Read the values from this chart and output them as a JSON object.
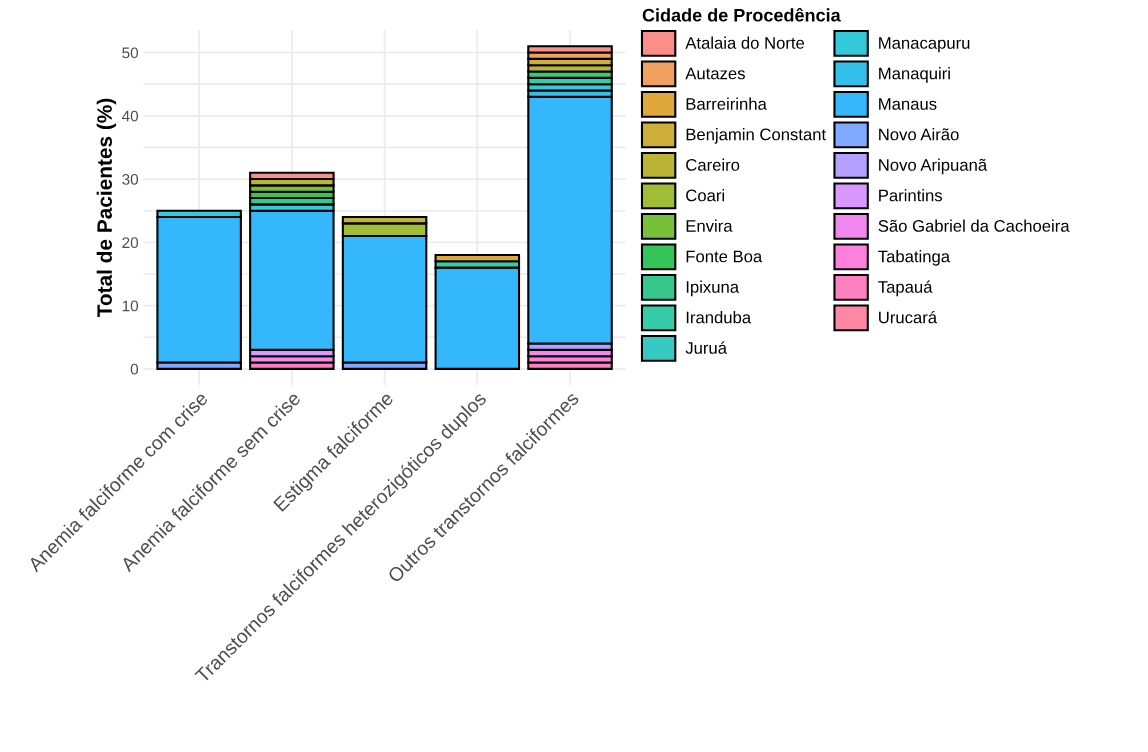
{
  "chart_data": {
    "type": "bar",
    "stacked": true,
    "ylabel": "Total de Pacientes (%)",
    "legend_title": "Cidade de Procedência",
    "legend": "right",
    "grid": true,
    "categories": [
      "Anemia falciforme com crise",
      "Anemia falciforme sem crise",
      "Estigma falciforme",
      "Transtornos falciformes heterozigóticos duplos",
      "Outros transtornos falciformes"
    ],
    "ylim": [
      -2.55,
      53.55
    ],
    "yticks": [
      0,
      {
        "value": 5,
        "label": null
      },
      10,
      {
        "value": 15,
        "label": null
      },
      20,
      {
        "value": 25,
        "label": null
      },
      30,
      {
        "value": 35,
        "label": null
      },
      40,
      {
        "value": 45,
        "label": null
      },
      50
    ],
    "series": [
      {
        "name": "Urucará",
        "color": "#fc88a4",
        "values": [
          0,
          0,
          0,
          0,
          0
        ]
      },
      {
        "name": "Tapauá",
        "color": "#fd80c0",
        "values": [
          0,
          1,
          0,
          0,
          1
        ]
      },
      {
        "name": "Tabatinga",
        "color": "#fc80dc",
        "values": [
          0,
          0,
          0,
          0,
          1
        ]
      },
      {
        "name": "São Gabriel da Cachoeira",
        "color": "#f088ee",
        "values": [
          0,
          1,
          0,
          0,
          1
        ]
      },
      {
        "name": "Parintins",
        "color": "#d898ff",
        "values": [
          0,
          1,
          0,
          0,
          0
        ]
      },
      {
        "name": "Novo Aripuanã",
        "color": "#b4a0ff",
        "values": [
          0,
          0,
          0,
          0,
          1
        ]
      },
      {
        "name": "Novo Airão",
        "color": "#80aaff",
        "values": [
          1,
          0,
          1,
          0,
          0
        ]
      },
      {
        "name": "Manaus",
        "color": "#35b8fb",
        "values": [
          23,
          22,
          20,
          16,
          39
        ]
      },
      {
        "name": "Manaquiri",
        "color": "#35c0ec",
        "values": [
          0,
          0,
          0,
          0,
          1
        ]
      },
      {
        "name": "Manacapuru",
        "color": "#35c8d8",
        "values": [
          1,
          1,
          0,
          0,
          1
        ]
      },
      {
        "name": "Juruá",
        "color": "#35cbc4",
        "values": [
          0,
          0,
          0,
          0,
          0
        ]
      },
      {
        "name": "Iranduba",
        "color": "#35cca8",
        "values": [
          0,
          0,
          0,
          1,
          1
        ]
      },
      {
        "name": "Ipixuna",
        "color": "#35c88a",
        "values": [
          0,
          1,
          0,
          0,
          1
        ]
      },
      {
        "name": "Fonte Boa",
        "color": "#35c45a",
        "values": [
          0,
          1,
          0,
          0,
          0
        ]
      },
      {
        "name": "Envira",
        "color": "#78c03a",
        "values": [
          0,
          1,
          0,
          0,
          0
        ]
      },
      {
        "name": "Coari",
        "color": "#a0bd35",
        "values": [
          0,
          0,
          2,
          0,
          0
        ]
      },
      {
        "name": "Careiro",
        "color": "#bbb435",
        "values": [
          0,
          1,
          1,
          0,
          1
        ]
      },
      {
        "name": "Benjamin Constant",
        "color": "#d0ae3a",
        "values": [
          0,
          0,
          0,
          0,
          1
        ]
      },
      {
        "name": "Barreirinha",
        "color": "#e0a83a",
        "values": [
          0,
          0,
          0,
          1,
          0
        ]
      },
      {
        "name": "Autazes",
        "color": "#f0a060",
        "values": [
          0,
          0,
          0,
          0,
          1
        ]
      },
      {
        "name": "Atalaia do Norte",
        "color": "#f98f88",
        "values": [
          0,
          1,
          0,
          0,
          1
        ]
      }
    ]
  }
}
